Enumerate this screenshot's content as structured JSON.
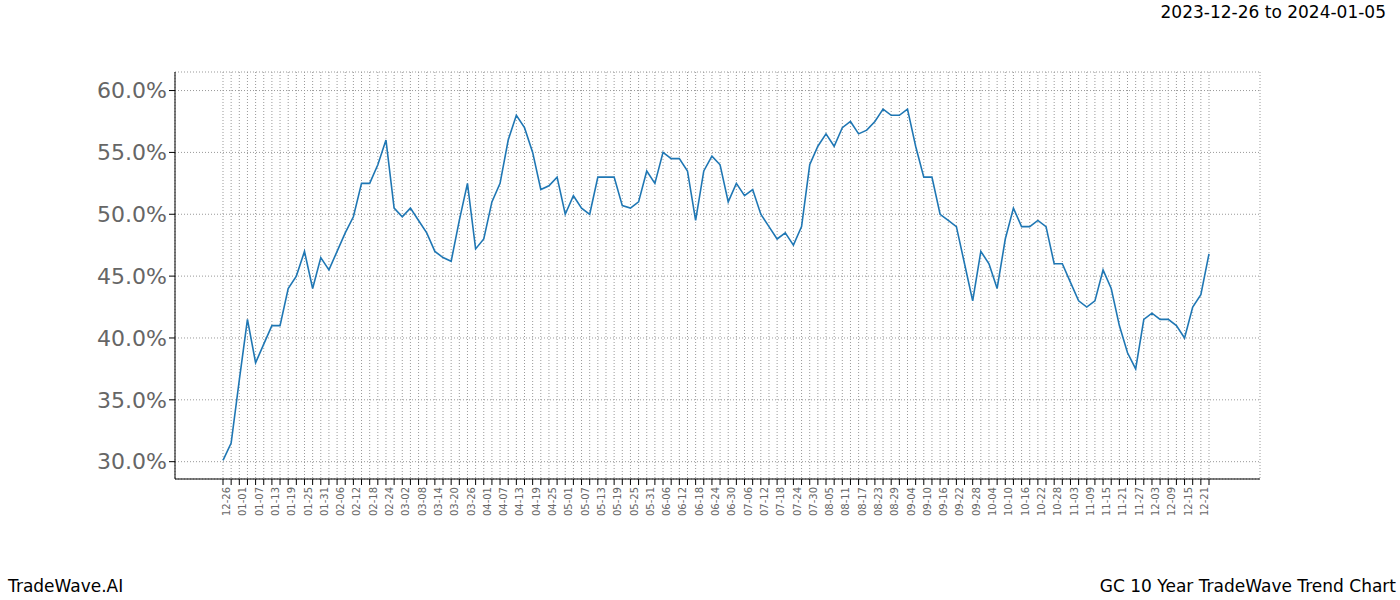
{
  "chart_data": {
    "type": "line",
    "title": "GC 10 Year TradeWave Trend Chart",
    "subtitle": "2023-12-26 to 2024-01-05",
    "source": "TradeWave.AI",
    "categories": [
      "12-26",
      null,
      "01-01",
      null,
      "01-07",
      null,
      "01-13",
      null,
      "01-19",
      null,
      "01-25",
      null,
      "01-31",
      null,
      "02-06",
      null,
      "02-12",
      null,
      "02-18",
      null,
      "02-24",
      null,
      "03-02",
      null,
      "03-08",
      null,
      "03-14",
      null,
      "03-20",
      null,
      "03-26",
      null,
      "04-01",
      null,
      "04-07",
      null,
      "04-13",
      null,
      "04-19",
      null,
      "04-25",
      null,
      "05-01",
      null,
      "05-07",
      null,
      "05-13",
      null,
      "05-19",
      null,
      "05-25",
      null,
      "05-31",
      null,
      "06-06",
      null,
      "06-12",
      null,
      "06-18",
      null,
      "06-24",
      null,
      "06-30",
      null,
      "07-06",
      null,
      "07-12",
      null,
      "07-18",
      null,
      "07-24",
      null,
      "07-30",
      null,
      "08-05",
      null,
      "08-11",
      null,
      "08-17",
      null,
      "08-23",
      null,
      "08-29",
      null,
      "09-04",
      null,
      "09-10",
      null,
      "09-16",
      null,
      "09-22",
      null,
      "09-28",
      null,
      "10-04",
      null,
      "10-10",
      null,
      "10-16",
      null,
      "10-22",
      null,
      "10-28",
      null,
      "11-03",
      null,
      "11-09",
      null,
      "11-15",
      null,
      "11-21",
      null,
      "11-27",
      null,
      "12-03",
      null,
      "12-09",
      null,
      "12-15",
      null,
      "12-21",
      null
    ],
    "values": [
      30.1,
      31.5,
      36.6,
      41.5,
      38,
      39.5,
      41,
      41,
      44,
      45,
      47,
      44,
      46.5,
      45.5,
      47,
      48.5,
      49.8,
      52.5,
      52.5,
      54,
      56,
      50.5,
      49.8,
      50.5,
      49.5,
      48.5,
      47,
      46.5,
      46.2,
      49.5,
      52.5,
      47.2,
      48,
      51,
      52.5,
      56,
      58,
      57,
      55,
      52,
      52.3,
      53,
      50,
      51.5,
      50.5,
      50,
      53,
      53,
      53,
      50.7,
      50.5,
      51,
      53.5,
      52.5,
      55,
      54.5,
      54.5,
      53.5,
      49.5,
      53.5,
      54.7,
      54,
      51,
      52.5,
      51.5,
      52,
      50,
      49,
      48,
      48.5,
      47.5,
      49,
      54,
      55.5,
      56.5,
      55.5,
      57,
      57.5,
      56.5,
      56.8,
      57.5,
      58.5,
      58,
      58,
      58.5,
      55.5,
      53,
      53,
      50,
      49.5,
      49,
      46,
      43,
      47,
      46,
      44,
      48,
      50.5,
      49,
      49,
      49.5,
      49,
      46,
      46,
      44.5,
      43,
      42.5,
      43,
      45.5,
      44,
      41,
      38.8,
      37.5,
      41.5,
      42,
      41.5,
      41.5,
      41,
      40,
      42.5,
      43.5,
      46.8
    ],
    "color": "#1f77b4",
    "ylim": [
      28.6,
      61.5
    ],
    "yticks": [
      {
        "value": 30,
        "label": "30.0%"
      },
      {
        "value": 35,
        "label": "35.0%"
      },
      {
        "value": 40,
        "label": "40.0%"
      },
      {
        "value": 45,
        "label": "45.0%"
      },
      {
        "value": 50,
        "label": "50.0%"
      },
      {
        "value": 55,
        "label": "55.0%"
      },
      {
        "value": 60,
        "label": "60.0%"
      }
    ],
    "grid": true,
    "highlight": [
      "12-26",
      "01-07"
    ]
  }
}
